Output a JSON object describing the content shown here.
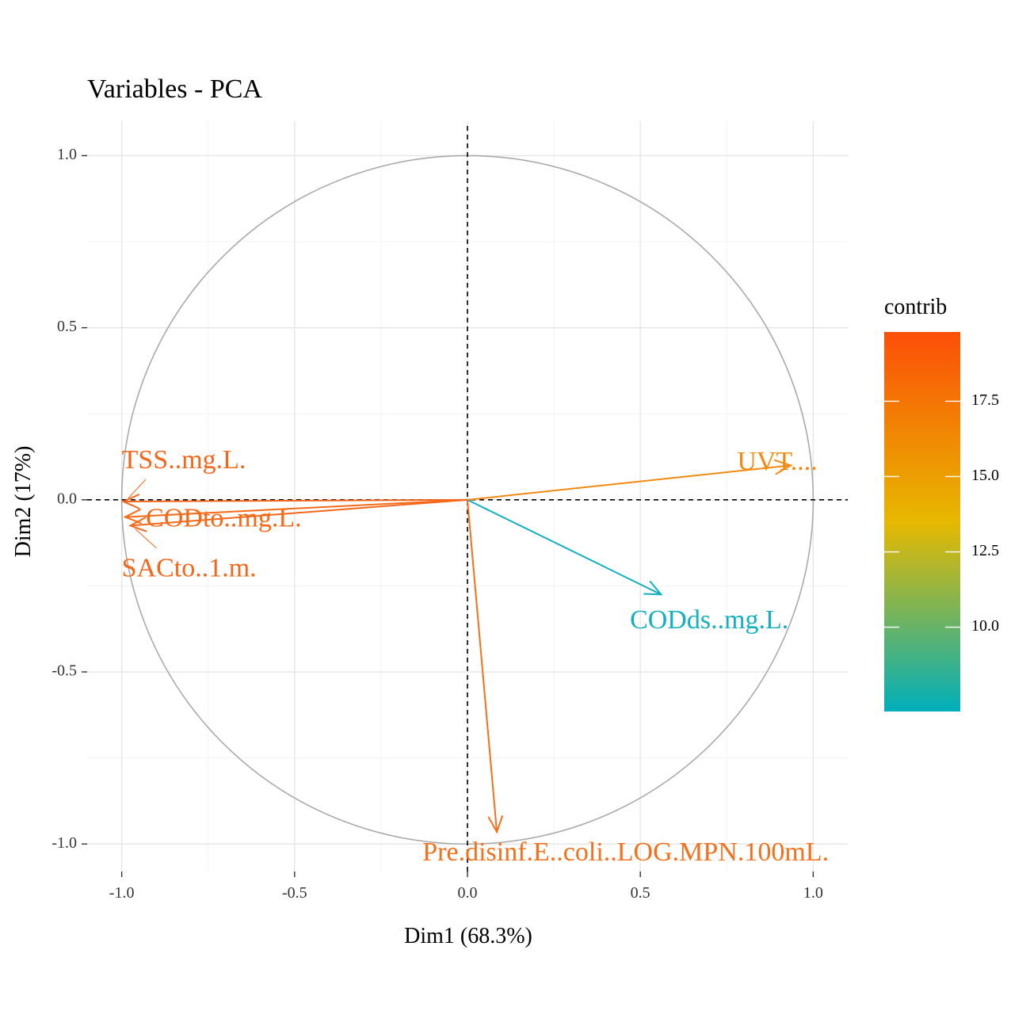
{
  "chart_data": {
    "type": "scatter",
    "subtype": "pca-variable-correlation-circle",
    "title": "Variables - PCA",
    "xlabel": "Dim1 (68.3%)",
    "ylabel": "Dim2 (17%)",
    "xlim": [
      -1.1,
      1.1
    ],
    "ylim": [
      -1.08,
      1.1
    ],
    "xticks": [
      -1.0,
      -0.5,
      0.0,
      0.5,
      1.0
    ],
    "xtick_labels": [
      "-1.0",
      "-0.5",
      "0.0",
      "0.5",
      "1.0"
    ],
    "yticks": [
      -1.0,
      -0.5,
      0.0,
      0.5,
      1.0
    ],
    "ytick_labels": [
      "-1.0",
      "-0.5",
      "0.0",
      "0.5",
      "1.0"
    ],
    "grid": true,
    "unit_circle": true,
    "variables": [
      {
        "name": "TSS..mg.L.",
        "x": -0.995,
        "y": -0.005,
        "contrib": 19.0,
        "color": "#F4661A",
        "label_x": -1.0,
        "label_y": 0.11
      },
      {
        "name": "CODto..mg.L.",
        "x": -0.99,
        "y": -0.05,
        "contrib": 18.6,
        "color": "#F56A18",
        "label_x": -0.93,
        "label_y": -0.06
      },
      {
        "name": "SACto..1.m.",
        "x": -0.975,
        "y": -0.075,
        "contrib": 18.8,
        "color": "#F4661A",
        "label_x": -1.0,
        "label_y": -0.205
      },
      {
        "name": "UVT....",
        "x": 0.935,
        "y": 0.1,
        "contrib": 16.5,
        "color": "#F28A10",
        "label_x": 0.78,
        "label_y": 0.105
      },
      {
        "name": "CODds..mg.L.",
        "x": 0.56,
        "y": -0.275,
        "contrib": 7.5,
        "color": "#14B0C0",
        "label_x": 0.47,
        "label_y": -0.355
      },
      {
        "name": "Pre.disinf.E..coli..LOG.MPN.100mL.",
        "x": 0.085,
        "y": -0.965,
        "contrib": 18.3,
        "color": "#F4701A",
        "label_x": -0.13,
        "label_y": -1.03
      }
    ],
    "legend": {
      "title": "contrib",
      "placement": "right",
      "min": 7.2,
      "max": 19.8,
      "ticks": [
        10.0,
        12.5,
        15.0,
        17.5
      ],
      "tick_labels": [
        "10.0",
        "12.5",
        "15.0",
        "17.5"
      ],
      "gradient": [
        "#00AFBB",
        "#E7B800",
        "#FC4E07"
      ]
    }
  }
}
